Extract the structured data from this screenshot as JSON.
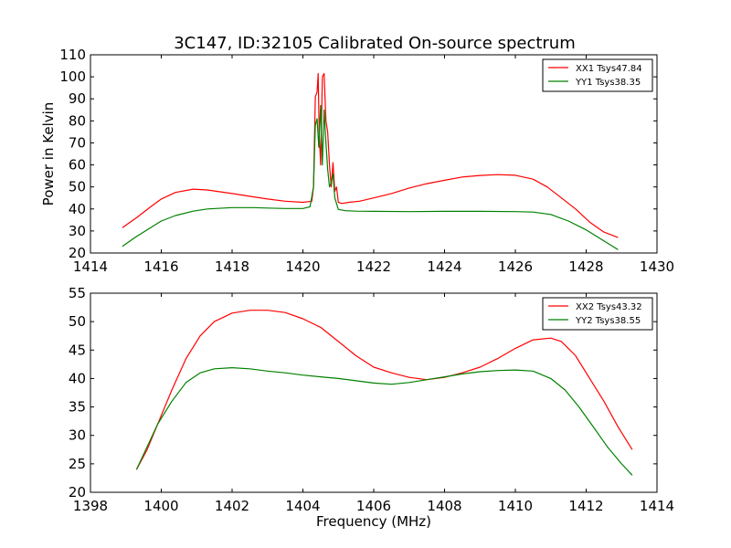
{
  "title": "3C147, ID:32105 Calibrated On-source spectrum",
  "chart_data": [
    {
      "type": "line",
      "ylabel": "Power in Kelvin",
      "xlabel": "",
      "xlim": [
        1414,
        1430
      ],
      "ylim": [
        20,
        110
      ],
      "xticks": [
        1414,
        1416,
        1418,
        1420,
        1422,
        1424,
        1426,
        1428,
        1430
      ],
      "yticks": [
        20,
        30,
        40,
        50,
        60,
        70,
        80,
        90,
        100,
        110
      ],
      "legend_position": "top-right",
      "grid": false,
      "series": [
        {
          "name": "XX1 Tsys47.84",
          "color": "#ff0000",
          "x": [
            1414.9,
            1415.3,
            1415.7,
            1416.0,
            1416.4,
            1416.9,
            1417.3,
            1418.0,
            1418.6,
            1419.0,
            1419.5,
            1420.0,
            1420.25,
            1420.3,
            1420.35,
            1420.4,
            1420.43,
            1420.46,
            1420.5,
            1420.55,
            1420.6,
            1420.65,
            1420.7,
            1420.75,
            1420.8,
            1420.85,
            1420.9,
            1420.95,
            1421.0,
            1421.1,
            1421.3,
            1421.6,
            1422.0,
            1422.5,
            1423.0,
            1423.5,
            1424.0,
            1424.5,
            1425.0,
            1425.5,
            1426.0,
            1426.5,
            1426.9,
            1427.3,
            1427.7,
            1428.1,
            1428.5,
            1428.9
          ],
          "y": [
            31.5,
            36,
            41,
            44.5,
            47.5,
            49,
            48.6,
            47,
            45.5,
            44.5,
            43.5,
            43,
            43.5,
            50,
            91,
            93,
            101.5,
            75,
            60,
            100,
            101.5,
            80,
            75,
            60,
            50,
            61,
            48,
            50,
            43,
            42.5,
            43,
            43.5,
            45,
            47,
            49.5,
            51.5,
            53,
            54.5,
            55.2,
            55.6,
            55.3,
            53.5,
            50,
            45,
            40,
            34,
            29.5,
            27
          ]
        },
        {
          "name": "YY1 Tsys38.35",
          "color": "#008000",
          "x": [
            1414.9,
            1415.3,
            1415.7,
            1416.0,
            1416.4,
            1416.9,
            1417.3,
            1418.0,
            1418.6,
            1419.0,
            1419.5,
            1420.0,
            1420.2,
            1420.3,
            1420.35,
            1420.4,
            1420.45,
            1420.5,
            1420.55,
            1420.6,
            1420.65,
            1420.7,
            1420.75,
            1420.8,
            1420.85,
            1420.9,
            1421.0,
            1421.2,
            1421.5,
            1422.0,
            1423.0,
            1424.0,
            1425.0,
            1426.0,
            1426.5,
            1427.0,
            1427.5,
            1428.0,
            1428.5,
            1428.9
          ],
          "y": [
            23,
            27.5,
            31.5,
            34.5,
            37,
            39,
            40,
            40.6,
            40.6,
            40.4,
            40.2,
            40.2,
            41,
            50,
            78,
            81,
            68,
            87,
            60,
            85,
            70,
            58,
            50,
            52,
            56,
            45,
            39.8,
            39.2,
            39,
            38.9,
            38.8,
            38.9,
            38.9,
            38.8,
            38.6,
            37.5,
            34.5,
            30.5,
            25.5,
            21.5
          ]
        }
      ]
    },
    {
      "type": "line",
      "ylabel": "",
      "xlabel": "Frequency (MHz)",
      "xlim": [
        1398,
        1414
      ],
      "ylim": [
        20,
        55
      ],
      "xticks": [
        1398,
        1400,
        1402,
        1404,
        1406,
        1408,
        1410,
        1412,
        1414
      ],
      "yticks": [
        20,
        25,
        30,
        35,
        40,
        45,
        50,
        55
      ],
      "legend_position": "top-right",
      "grid": false,
      "series": [
        {
          "name": "XX2 Tsys43.32",
          "color": "#ff0000",
          "x": [
            1399.3,
            1399.6,
            1399.9,
            1400.3,
            1400.7,
            1401.1,
            1401.5,
            1402.0,
            1402.5,
            1403.0,
            1403.5,
            1404.0,
            1404.5,
            1405.0,
            1405.5,
            1406.0,
            1406.5,
            1407.0,
            1407.5,
            1408.0,
            1408.5,
            1409.0,
            1409.5,
            1410.0,
            1410.5,
            1411.0,
            1411.3,
            1411.7,
            1412.1,
            1412.5,
            1412.9,
            1413.3
          ],
          "y": [
            24,
            27.5,
            32,
            38,
            43.5,
            47.5,
            50,
            51.5,
            52,
            52,
            51.6,
            50.5,
            49,
            46.5,
            44,
            42,
            41,
            40.2,
            39.8,
            40.2,
            41,
            42,
            43.5,
            45.3,
            46.8,
            47.1,
            46.5,
            44,
            40,
            36,
            31.5,
            27.5
          ]
        },
        {
          "name": "YY2 Tsys38.55",
          "color": "#008000",
          "x": [
            1399.3,
            1399.6,
            1399.9,
            1400.3,
            1400.7,
            1401.1,
            1401.5,
            1402.0,
            1402.5,
            1403.0,
            1403.5,
            1404.0,
            1404.5,
            1405.0,
            1405.5,
            1406.0,
            1406.5,
            1407.0,
            1407.5,
            1408.0,
            1408.5,
            1409.0,
            1409.5,
            1410.0,
            1410.5,
            1411.0,
            1411.4,
            1411.8,
            1412.2,
            1412.6,
            1413.0,
            1413.3
          ],
          "y": [
            24,
            28,
            32,
            36,
            39.3,
            41,
            41.7,
            41.9,
            41.7,
            41.3,
            41,
            40.6,
            40.3,
            40,
            39.6,
            39.2,
            39,
            39.3,
            39.8,
            40.3,
            40.8,
            41.2,
            41.4,
            41.5,
            41.3,
            40,
            38,
            35,
            31.5,
            28,
            25,
            23
          ]
        }
      ]
    }
  ]
}
